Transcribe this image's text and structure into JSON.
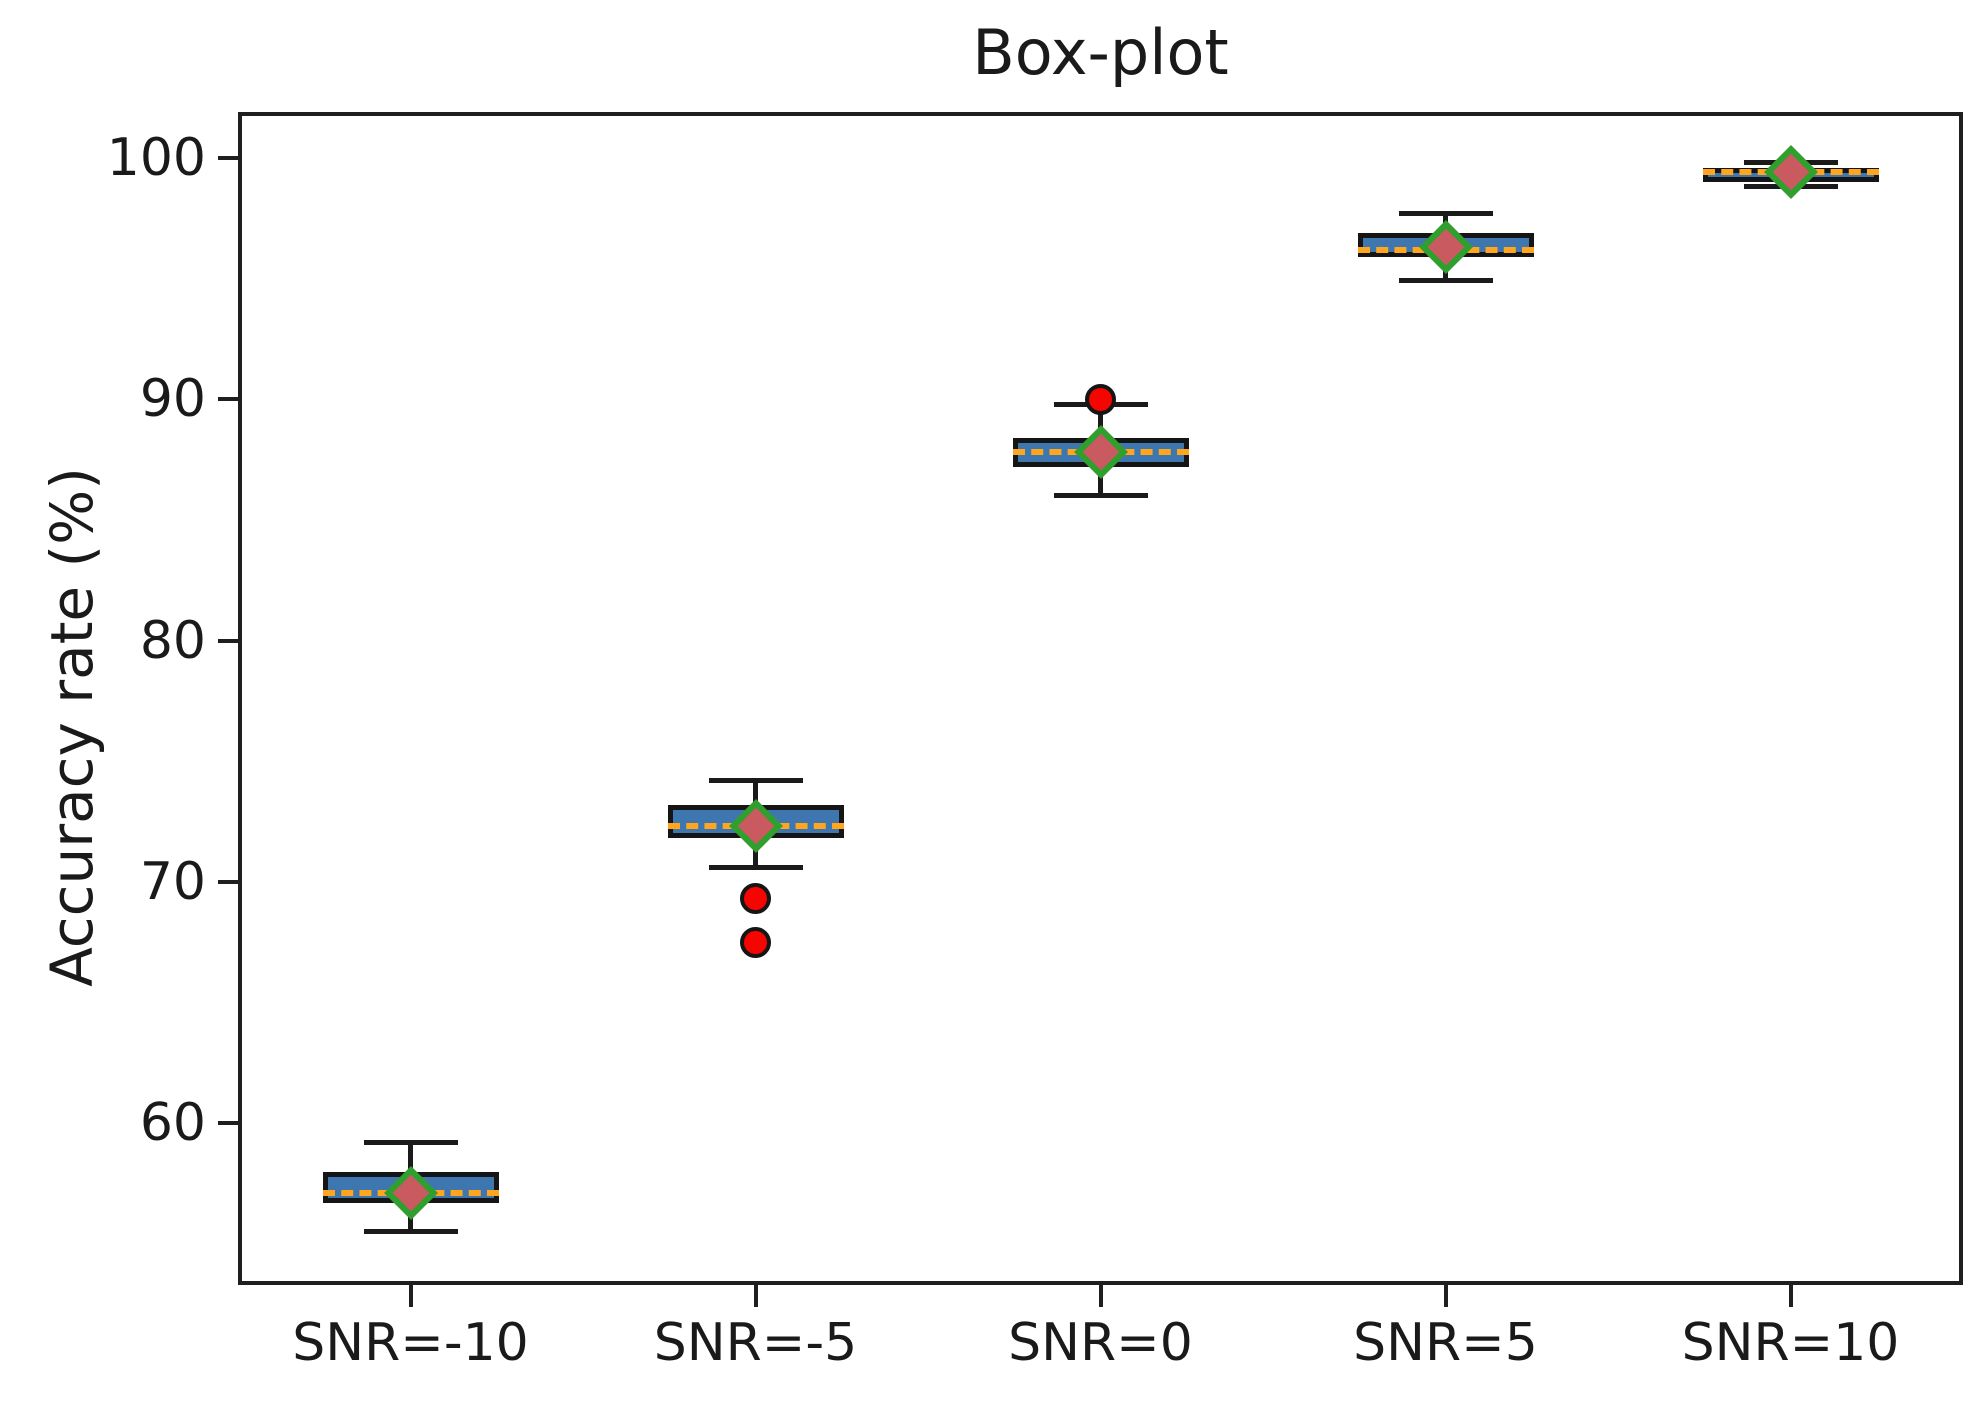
{
  "figure": {
    "title": "Box-plot"
  },
  "chart_data": {
    "type": "box",
    "title": "Box-plot",
    "ylabel": "Accuracy rate (%)",
    "xlabel": "",
    "yticks": [
      60,
      70,
      80,
      90,
      100
    ],
    "ylim": [
      53.3,
      101.9
    ],
    "grid": false,
    "legend": false,
    "categories": [
      "SNR=-10",
      "SNR=-5",
      "SNR=0",
      "SNR=5",
      "SNR=10"
    ],
    "boxes": [
      {
        "label": "SNR=-10",
        "whisker_low": 55.5,
        "q1": 56.7,
        "median": 57.1,
        "q3": 58.0,
        "whisker_high": 59.2,
        "mean": 57.1,
        "outliers": []
      },
      {
        "label": "SNR=-5",
        "whisker_low": 70.6,
        "q1": 71.8,
        "median": 72.3,
        "q3": 73.2,
        "whisker_high": 74.2,
        "mean": 72.3,
        "outliers": [
          69.3,
          67.5
        ]
      },
      {
        "label": "SNR=0",
        "whisker_low": 86.0,
        "q1": 87.2,
        "median": 87.8,
        "q3": 88.4,
        "whisker_high": 89.8,
        "mean": 87.8,
        "outliers": [
          90.0
        ]
      },
      {
        "label": "SNR=5",
        "whisker_low": 94.9,
        "q1": 95.9,
        "median": 96.2,
        "q3": 96.9,
        "whisker_high": 97.7,
        "mean": 96.3,
        "outliers": []
      },
      {
        "label": "SNR=10",
        "whisker_low": 98.8,
        "q1": 99.0,
        "median": 99.4,
        "q3": 99.6,
        "whisker_high": 99.8,
        "mean": 99.4,
        "outliers": []
      }
    ],
    "colors": {
      "box_fill": "#3e76af",
      "box_edge": "#151515",
      "whisker": "#1a1a1a",
      "median": "#ffa51e",
      "mean_fill": "#c85a60",
      "mean_edge": "#2da02d",
      "outlier_fill": "#f50400",
      "outlier_edge": "#151515"
    }
  }
}
